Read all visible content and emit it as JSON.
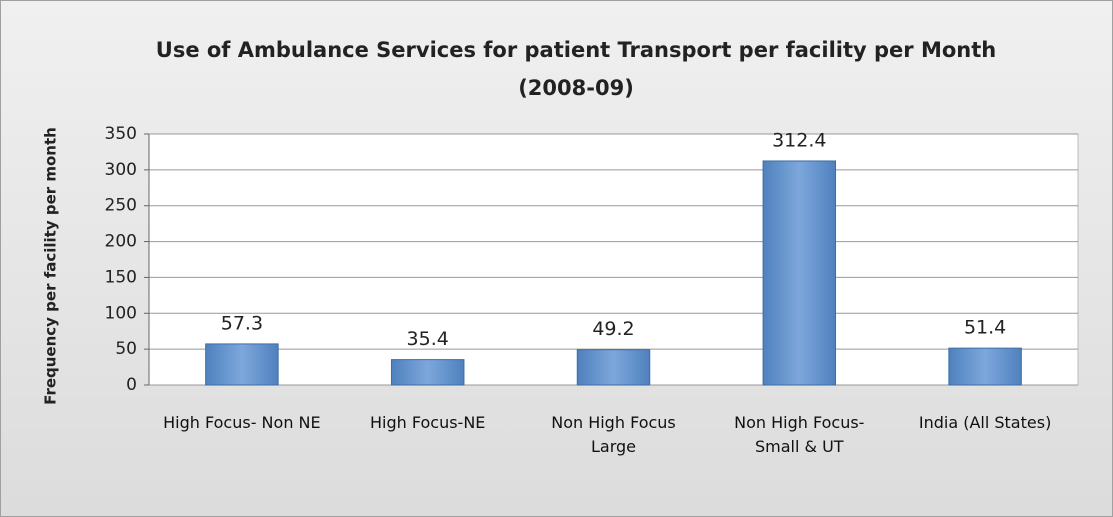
{
  "chart_data": {
    "type": "bar",
    "title": "Use of Ambulance Services for patient Transport per facility per Month (2008-09)",
    "ylabel": "Frequency per facility per month",
    "categories": [
      "High Focus- Non NE",
      "High Focus-NE",
      "Non High Focus Large",
      "Non High Focus- Small & UT",
      "India (All States)"
    ],
    "values": [
      57.3,
      35.4,
      49.2,
      312.4,
      51.4
    ],
    "color": "#4f81bd",
    "ylim": [
      0,
      350
    ],
    "yticks": [
      0,
      50,
      100,
      150,
      200,
      250,
      300,
      350
    ],
    "grid": true
  }
}
